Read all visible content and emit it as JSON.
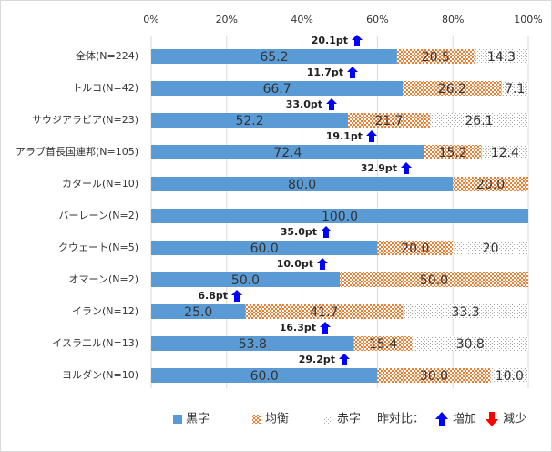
{
  "chart_data": {
    "type": "stacked-bar-horizontal",
    "categories": [
      "全体(N=224)",
      "トルコ(N=42)",
      "サウジアラビア(N=23)",
      "アラブ首長国連邦(N=105)",
      "カタール(N=10)",
      "バーレーン(N=2)",
      "クウェート(N=5)",
      "オマーン(N=2)",
      "イラン(N=12)",
      "イスラエル(N=13)",
      "ヨルダン(N=10)"
    ],
    "series": [
      {
        "name": "黒字",
        "color": "#5b9bd5",
        "pattern": "solid",
        "values": [
          65.2,
          66.7,
          52.2,
          72.4,
          80.0,
          100.0,
          60.0,
          50.0,
          25.0,
          53.8,
          60.0
        ],
        "value_labels": [
          "65.2",
          "66.7",
          "52.2",
          "72.4",
          "80.0",
          "100.0",
          "60.0",
          "50.0",
          "25.0",
          "53.8",
          "60.0"
        ]
      },
      {
        "name": "均衡",
        "color": "#ed7d31",
        "pattern": "checker",
        "values": [
          20.5,
          26.2,
          21.7,
          15.2,
          20.0,
          null,
          20.0,
          50.0,
          41.7,
          15.4,
          30.0
        ],
        "value_labels": [
          "20.5",
          "26.2",
          "21.7",
          "15.2",
          "20.0",
          null,
          "20.0",
          "50.0",
          "41.7",
          "15.4",
          "30.0"
        ]
      },
      {
        "name": "赤字",
        "color": "#a5a5a5",
        "pattern": "dots",
        "values": [
          14.3,
          7.1,
          26.1,
          12.4,
          null,
          null,
          20,
          null,
          33.3,
          30.8,
          10.0
        ],
        "value_labels": [
          "14.3",
          "7.1",
          "26.1",
          "12.4",
          null,
          null,
          "20",
          null,
          "33.3",
          "30.8",
          "10.0"
        ]
      }
    ],
    "annotations": [
      "20.1pt",
      "11.7pt",
      "33.0pt",
      "19.1pt",
      "32.9pt",
      null,
      "35.0pt",
      "10.0pt",
      "6.8pt",
      "16.3pt",
      "29.2pt"
    ],
    "xlim": [
      0,
      100
    ],
    "xticks": [
      {
        "value": 0,
        "label": "0%"
      },
      {
        "value": 20,
        "label": "20%"
      },
      {
        "value": 40,
        "label": "40%"
      },
      {
        "value": 60,
        "label": "60%"
      },
      {
        "value": 80,
        "label": "80%"
      },
      {
        "value": 100,
        "label": "100%"
      }
    ],
    "grid": true,
    "change_legend": {
      "title": "昨対比：",
      "increase": "増加",
      "decrease": "減少"
    }
  }
}
